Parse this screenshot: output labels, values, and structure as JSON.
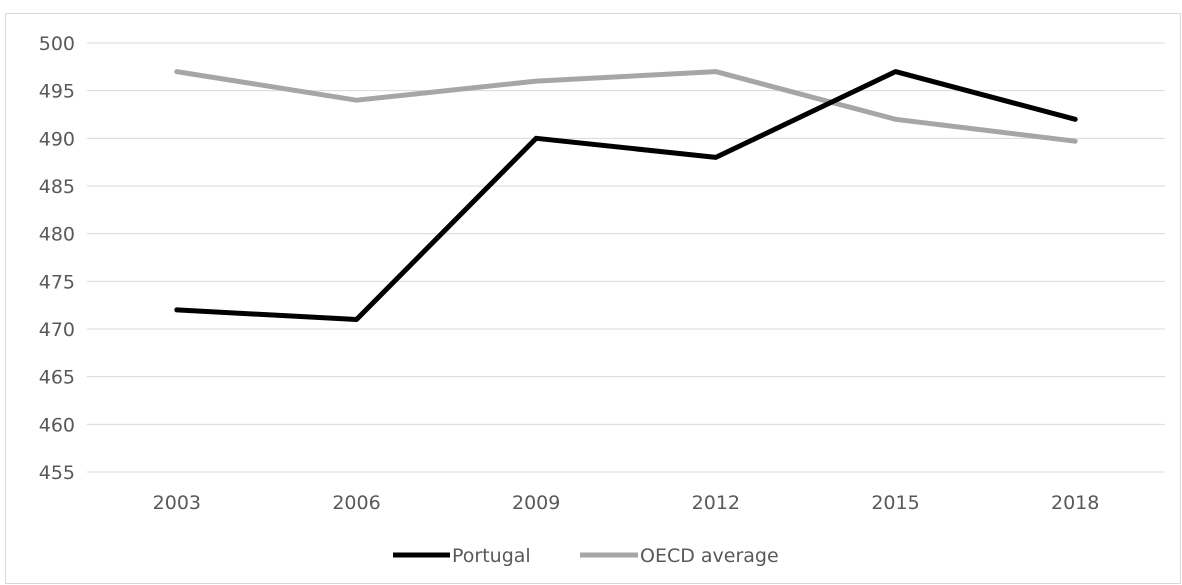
{
  "chart_data": {
    "type": "line",
    "title": "",
    "xlabel": "",
    "ylabel": "",
    "x": [
      "2003",
      "2006",
      "2009",
      "2012",
      "2015",
      "2018"
    ],
    "ylim": [
      455,
      500
    ],
    "yticks": [
      455,
      460,
      465,
      470,
      475,
      480,
      485,
      490,
      495,
      500
    ],
    "grid": "horizontal",
    "legend_position": "bottom",
    "series": [
      {
        "name": "Portugal",
        "color": "#000000",
        "values": [
          472,
          471,
          490,
          488,
          497,
          492
        ]
      },
      {
        "name": "OECD average",
        "color": "#a6a6a6",
        "values": [
          497,
          494,
          496,
          497,
          492,
          489.7
        ]
      }
    ]
  }
}
